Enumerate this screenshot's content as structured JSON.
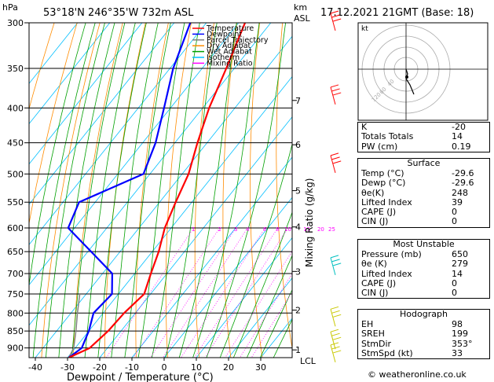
{
  "header": {
    "unit_left": "hPa",
    "location": "53°18'N 246°35'W 732m ASL",
    "unit_km": "km",
    "unit_asl": "ASL",
    "datetime": "17.12.2021 21GMT (Base: 18)"
  },
  "legend": [
    {
      "label": "Temperature",
      "color": "#ff0000"
    },
    {
      "label": "Dewpoint",
      "color": "#0000ff"
    },
    {
      "label": "Parcel Trajectory",
      "color": "#808080"
    },
    {
      "label": "Dry Adiabat",
      "color": "#ff8c00"
    },
    {
      "label": "Wet Adiabat",
      "color": "#00a000"
    },
    {
      "label": "Isotherm",
      "color": "#00bfff"
    },
    {
      "label": "Mixing Ratio",
      "color": "#ff00ff"
    }
  ],
  "colors": {
    "temperature": "#ff0000",
    "dewpoint": "#0000ff",
    "parcel": "#808080",
    "dry_adiabat": "#ff8c00",
    "wet_adiabat": "#00a000",
    "isotherm": "#00bfff",
    "mixing_ratio": "#ff00ff",
    "wind": "#ff0000"
  },
  "chart_data": {
    "type": "skew-t",
    "xlabel": "Dewpoint / Temperature (°C)",
    "ylabel_right": "Mixing Ratio (g/kg)",
    "pressure_levels": [
      300,
      350,
      400,
      450,
      500,
      550,
      600,
      650,
      700,
      750,
      800,
      850,
      900
    ],
    "pressure_labels": [
      "300",
      "350",
      "400",
      "450",
      "500",
      "550",
      "600",
      "650",
      "700",
      "750",
      "800",
      "850",
      "900"
    ],
    "x_ticks": [
      -40,
      -30,
      -20,
      -10,
      0,
      10,
      20,
      30
    ],
    "x_tick_labels": [
      "-40",
      "-30",
      "-20",
      "-10",
      "0",
      "10",
      "20",
      "30"
    ],
    "p_range": [
      300,
      930
    ],
    "temperature": [
      {
        "p": 930,
        "t": -29.6
      },
      {
        "p": 900,
        "t": -25.5
      },
      {
        "p": 850,
        "t": -24.0
      },
      {
        "p": 800,
        "t": -23.5
      },
      {
        "p": 750,
        "t": -22.0
      },
      {
        "p": 700,
        "t": -25.0
      },
      {
        "p": 650,
        "t": -28.0
      },
      {
        "p": 600,
        "t": -32.0
      },
      {
        "p": 550,
        "t": -35.0
      },
      {
        "p": 500,
        "t": -38.0
      },
      {
        "p": 450,
        "t": -43.0
      },
      {
        "p": 400,
        "t": -48.0
      },
      {
        "p": 350,
        "t": -52.5
      },
      {
        "p": 300,
        "t": -58.0
      }
    ],
    "dewpoint": [
      {
        "p": 930,
        "t": -29.6
      },
      {
        "p": 900,
        "t": -28.0
      },
      {
        "p": 850,
        "t": -30.0
      },
      {
        "p": 800,
        "t": -33.0
      },
      {
        "p": 750,
        "t": -32.0
      },
      {
        "p": 700,
        "t": -37.0
      },
      {
        "p": 650,
        "t": -49.0
      },
      {
        "p": 600,
        "t": -62.0
      },
      {
        "p": 550,
        "t": -65.0
      },
      {
        "p": 500,
        "t": -52.0
      },
      {
        "p": 450,
        "t": -56.0
      },
      {
        "p": 400,
        "t": -62.0
      },
      {
        "p": 350,
        "t": -69.0
      },
      {
        "p": 300,
        "t": -75.0
      }
    ],
    "parcel": [
      {
        "p": 930,
        "t": -29.6
      },
      {
        "p": 900,
        "t": -30.5
      },
      {
        "p": 850,
        "t": -34.0
      },
      {
        "p": 800,
        "t": -38.0
      },
      {
        "p": 750,
        "t": -42.0
      }
    ],
    "mixing_ratio_values": [
      1,
      2,
      3,
      4,
      6,
      8,
      10,
      15,
      20,
      25
    ],
    "mixing_ratio_labels": [
      "1",
      "2",
      "3",
      "4",
      "6",
      "8",
      "10",
      "15",
      "20",
      "25"
    ],
    "km_ticks": [
      {
        "km": 1,
        "p": 906,
        "label": "1"
      },
      {
        "km": 2,
        "p": 792,
        "label": "2"
      },
      {
        "km": 3,
        "p": 695,
        "label": "3"
      },
      {
        "km": 4,
        "p": 598,
        "label": "4"
      },
      {
        "km": 5,
        "p": 529,
        "label": "5"
      },
      {
        "km": 6,
        "p": 453,
        "label": "6"
      },
      {
        "km": 7,
        "p": 390,
        "label": "7"
      }
    ],
    "lcl_label": "LCL",
    "wind_barbs": [
      {
        "p": 300,
        "color": "#ff0000"
      },
      {
        "p": 385,
        "color": "#ff0000"
      },
      {
        "p": 485,
        "color": "#ff0000"
      },
      {
        "p": 685,
        "color": "#00c0c0"
      },
      {
        "p": 815,
        "color": "#c8c800"
      },
      {
        "p": 880,
        "color": "#c8c800"
      },
      {
        "p": 920,
        "color": "#c8c800"
      }
    ]
  },
  "hodograph": {
    "label": "kt",
    "ring_labels": [
      "40",
      "60",
      "120"
    ]
  },
  "indices": [
    {
      "label": "K",
      "value": "-20"
    },
    {
      "label": "Totals Totals",
      "value": "14"
    },
    {
      "label": "PW (cm)",
      "value": "0.19"
    }
  ],
  "surface": {
    "title": "Surface",
    "rows": [
      {
        "label": "Temp (°C)",
        "value": "-29.6"
      },
      {
        "label": "Dewp (°C)",
        "value": "-29.6"
      },
      {
        "label": "θe(K)",
        "value": "248"
      },
      {
        "label": "Lifted Index",
        "value": "39"
      },
      {
        "label": "CAPE (J)",
        "value": "0"
      },
      {
        "label": "CIN (J)",
        "value": "0"
      }
    ]
  },
  "most_unstable": {
    "title": "Most Unstable",
    "rows": [
      {
        "label": "Pressure (mb)",
        "value": "650"
      },
      {
        "label": "θe (K)",
        "value": "279"
      },
      {
        "label": "Lifted Index",
        "value": "14"
      },
      {
        "label": "CAPE (J)",
        "value": "0"
      },
      {
        "label": "CIN (J)",
        "value": "0"
      }
    ]
  },
  "hodograph_table": {
    "title": "Hodograph",
    "rows": [
      {
        "label": "EH",
        "value": "98"
      },
      {
        "label": "SREH",
        "value": "199"
      },
      {
        "label": "StmDir",
        "value": "353°"
      },
      {
        "label": "StmSpd (kt)",
        "value": "33"
      }
    ]
  },
  "footer": "© weatheronline.co.uk"
}
